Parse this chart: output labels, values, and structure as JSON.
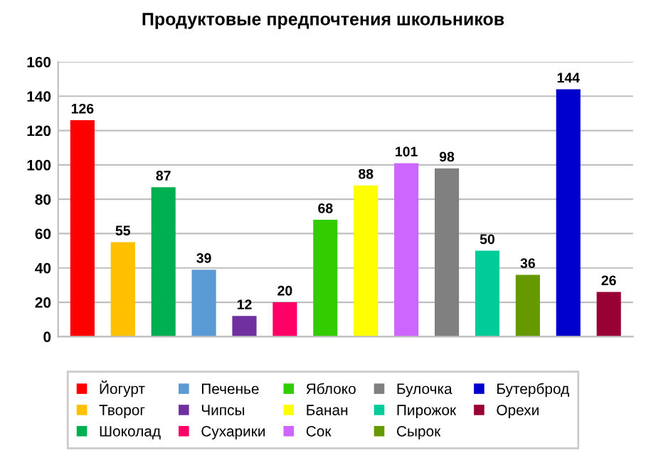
{
  "chart_data": {
    "type": "bar",
    "title": "Продуктовые предпочтения школьников",
    "categories": [
      null,
      null,
      null,
      null,
      null,
      null,
      null,
      null,
      null,
      null,
      null,
      null,
      null,
      null
    ],
    "series": [
      {
        "name": "Йогурт",
        "color": "#ff0000",
        "values": [
          126,
          null,
          null,
          null,
          null,
          null,
          null,
          null,
          null,
          null,
          null,
          null,
          null,
          null
        ]
      },
      {
        "name": "Творог",
        "color": "#ffc000",
        "values": [
          null,
          55,
          null,
          null,
          null,
          null,
          null,
          null,
          null,
          null,
          null,
          null,
          null,
          null
        ]
      },
      {
        "name": "Шоколад",
        "color": "#00b050",
        "values": [
          null,
          null,
          87,
          null,
          null,
          null,
          null,
          null,
          null,
          null,
          null,
          null,
          null,
          null
        ]
      },
      {
        "name": "Печенье",
        "color": "#5b9bd5",
        "values": [
          null,
          null,
          null,
          39,
          null,
          null,
          null,
          null,
          null,
          null,
          null,
          null,
          null,
          null
        ]
      },
      {
        "name": "Чипсы",
        "color": "#7030a0",
        "values": [
          null,
          null,
          null,
          null,
          12,
          null,
          null,
          null,
          null,
          null,
          null,
          null,
          null,
          null
        ]
      },
      {
        "name": "Сухарики",
        "color": "#ff0066",
        "values": [
          null,
          null,
          null,
          null,
          null,
          20,
          null,
          null,
          null,
          null,
          null,
          null,
          null,
          null
        ]
      },
      {
        "name": "Яблоко",
        "color": "#33cc00",
        "values": [
          null,
          null,
          null,
          null,
          null,
          null,
          68,
          null,
          null,
          null,
          null,
          null,
          null,
          null
        ]
      },
      {
        "name": "Банан",
        "color": "#ffff00",
        "values": [
          null,
          null,
          null,
          null,
          null,
          null,
          null,
          88,
          null,
          null,
          null,
          null,
          null,
          null
        ]
      },
      {
        "name": "Сок",
        "color": "#cc66ff",
        "values": [
          null,
          null,
          null,
          null,
          null,
          null,
          null,
          null,
          101,
          null,
          null,
          null,
          null,
          null
        ]
      },
      {
        "name": "Булочка",
        "color": "#808080",
        "values": [
          null,
          null,
          null,
          null,
          null,
          null,
          null,
          null,
          null,
          98,
          null,
          null,
          null,
          null
        ]
      },
      {
        "name": "Пирожок",
        "color": "#00cc99",
        "values": [
          null,
          null,
          null,
          null,
          null,
          null,
          null,
          null,
          null,
          null,
          50,
          null,
          null,
          null
        ]
      },
      {
        "name": "Сырок",
        "color": "#669900",
        "values": [
          null,
          null,
          null,
          null,
          null,
          null,
          null,
          null,
          null,
          null,
          null,
          36,
          null,
          null
        ]
      },
      {
        "name": "Бутерброд",
        "color": "#0000cc",
        "values": [
          null,
          null,
          null,
          null,
          null,
          null,
          null,
          null,
          null,
          null,
          null,
          null,
          144,
          null
        ]
      },
      {
        "name": "Орехи",
        "color": "#990033",
        "values": [
          null,
          null,
          null,
          null,
          null,
          null,
          null,
          null,
          null,
          null,
          null,
          null,
          null,
          26
        ]
      }
    ],
    "ylim": [
      0,
      160
    ],
    "yticks": [
      0,
      20,
      40,
      60,
      80,
      100,
      120,
      140,
      160
    ],
    "grid": "y",
    "data_labels": true,
    "legend": "bottom",
    "tick_labels": "y"
  }
}
